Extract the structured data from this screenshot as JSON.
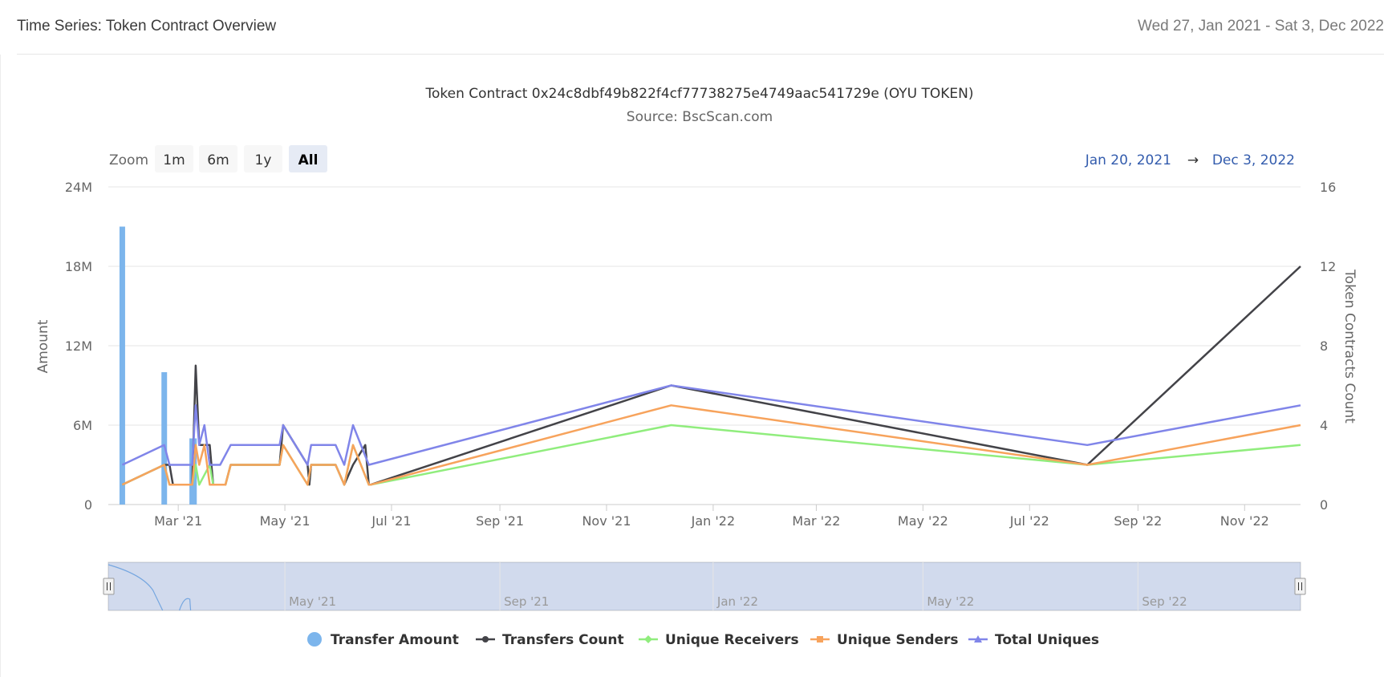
{
  "header": {
    "title": "Time Series: Token Contract Overview",
    "date_range": "Wed 27, Jan 2021 - Sat 3, Dec 2022"
  },
  "range_selector": {
    "zoom_label": "Zoom",
    "buttons": [
      {
        "label": "1m",
        "selected": false
      },
      {
        "label": "6m",
        "selected": false
      },
      {
        "label": "1y",
        "selected": false
      },
      {
        "label": "All",
        "selected": true
      }
    ],
    "from": "Jan 20, 2021",
    "arrow": "→",
    "to": "Dec 3, 2022"
  },
  "navigator": {
    "labels": [
      "May '21",
      "Sep '21",
      "Jan '22",
      "May '22",
      "Sep '22"
    ]
  },
  "chart_data": {
    "type": "line",
    "title": "Token Contract 0x24c8dbf49b822f4cf77738275e4749aac541729e (OYU TOKEN)",
    "subtitle": "Source: BscScan.com",
    "x_axis": {
      "type": "date",
      "range": [
        "2021-01-20",
        "2022-12-03"
      ],
      "tick_labels": [
        "Mar '21",
        "May '21",
        "Jul '21",
        "Sep '21",
        "Nov '21",
        "Jan '22",
        "Mar '22",
        "May '22",
        "Jul '22",
        "Sep '22",
        "Nov '22"
      ],
      "tick_dates": [
        "2021-03-01",
        "2021-05-01",
        "2021-07-01",
        "2021-09-01",
        "2021-11-01",
        "2022-01-01",
        "2022-03-01",
        "2022-05-01",
        "2022-07-01",
        "2022-09-01",
        "2022-11-01"
      ]
    },
    "y_axis_left": {
      "label": "Amount",
      "range": [
        0,
        24000000
      ],
      "ticks": [
        0,
        6000000,
        12000000,
        18000000,
        24000000
      ],
      "tick_labels": [
        "0",
        "6M",
        "12M",
        "18M",
        "24M"
      ]
    },
    "y_axis_right": {
      "label": "Token Contracts Count",
      "range": [
        0,
        16
      ],
      "ticks": [
        0,
        4,
        8,
        12,
        16
      ],
      "tick_labels": [
        "0",
        "4",
        "8",
        "12",
        "16"
      ]
    },
    "grid": true,
    "legend_position": "bottom-center",
    "colors": {
      "transfer_amount": "#7cb5ec",
      "transfers_count": "#434348",
      "unique_receivers": "#90ed7d",
      "unique_senders": "#f7a35c",
      "total_uniques": "#8085e9"
    },
    "bar_series": {
      "name": "Transfer Amount",
      "axis": "left",
      "points": [
        {
          "x": "2021-01-28",
          "y": 21000000
        },
        {
          "x": "2021-02-21",
          "y": 10000000
        },
        {
          "x": "2021-03-09",
          "y": 5000000
        },
        {
          "x": "2021-03-10",
          "y": 5000000
        }
      ]
    },
    "series": [
      {
        "name": "Transfers Count",
        "axis": "right",
        "marker": "circle",
        "points": [
          {
            "x": "2021-01-28",
            "y": 1
          },
          {
            "x": "2021-02-21",
            "y": 2
          },
          {
            "x": "2021-02-24",
            "y": 2
          },
          {
            "x": "2021-02-26",
            "y": 1
          },
          {
            "x": "2021-03-09",
            "y": 1
          },
          {
            "x": "2021-03-11",
            "y": 7
          },
          {
            "x": "2021-03-13",
            "y": 3
          },
          {
            "x": "2021-03-19",
            "y": 3
          },
          {
            "x": "2021-03-21",
            "y": 1
          },
          {
            "x": "2021-03-28",
            "y": 1
          },
          {
            "x": "2021-03-31",
            "y": 2
          },
          {
            "x": "2021-04-28",
            "y": 2
          },
          {
            "x": "2021-04-30",
            "y": 4
          },
          {
            "x": "2021-05-14",
            "y": 2
          },
          {
            "x": "2021-05-15",
            "y": 1
          },
          {
            "x": "2021-05-16",
            "y": 2
          },
          {
            "x": "2021-05-30",
            "y": 2
          },
          {
            "x": "2021-06-04",
            "y": 1
          },
          {
            "x": "2021-06-09",
            "y": 2
          },
          {
            "x": "2021-06-16",
            "y": 3
          },
          {
            "x": "2021-06-18",
            "y": 1
          },
          {
            "x": "2021-06-19",
            "y": 1
          },
          {
            "x": "2021-12-08",
            "y": 6
          },
          {
            "x": "2022-08-03",
            "y": 2
          },
          {
            "x": "2022-12-03",
            "y": 12
          }
        ]
      },
      {
        "name": "Unique Receivers",
        "axis": "right",
        "marker": "diamond",
        "points": [
          {
            "x": "2021-01-28",
            "y": 1
          },
          {
            "x": "2021-02-21",
            "y": 2
          },
          {
            "x": "2021-02-24",
            "y": 1
          },
          {
            "x": "2021-03-09",
            "y": 1
          },
          {
            "x": "2021-03-11",
            "y": 2
          },
          {
            "x": "2021-03-13",
            "y": 1
          },
          {
            "x": "2021-03-19",
            "y": 2
          },
          {
            "x": "2021-03-21",
            "y": 1
          },
          {
            "x": "2021-03-28",
            "y": 1
          },
          {
            "x": "2021-03-31",
            "y": 2
          },
          {
            "x": "2021-04-28",
            "y": 2
          },
          {
            "x": "2021-04-30",
            "y": 3
          },
          {
            "x": "2021-05-14",
            "y": 1
          },
          {
            "x": "2021-05-16",
            "y": 2
          },
          {
            "x": "2021-05-30",
            "y": 2
          },
          {
            "x": "2021-06-04",
            "y": 1
          },
          {
            "x": "2021-06-09",
            "y": 3
          },
          {
            "x": "2021-06-18",
            "y": 1
          },
          {
            "x": "2021-06-19",
            "y": 1
          },
          {
            "x": "2021-12-08",
            "y": 4
          },
          {
            "x": "2022-08-03",
            "y": 2
          },
          {
            "x": "2022-12-03",
            "y": 3
          }
        ]
      },
      {
        "name": "Unique Senders",
        "axis": "right",
        "marker": "square",
        "points": [
          {
            "x": "2021-01-28",
            "y": 1
          },
          {
            "x": "2021-02-21",
            "y": 2
          },
          {
            "x": "2021-02-24",
            "y": 1
          },
          {
            "x": "2021-03-09",
            "y": 1
          },
          {
            "x": "2021-03-11",
            "y": 3
          },
          {
            "x": "2021-03-13",
            "y": 2
          },
          {
            "x": "2021-03-16",
            "y": 3
          },
          {
            "x": "2021-03-19",
            "y": 1
          },
          {
            "x": "2021-03-28",
            "y": 1
          },
          {
            "x": "2021-03-31",
            "y": 2
          },
          {
            "x": "2021-04-28",
            "y": 2
          },
          {
            "x": "2021-04-30",
            "y": 3
          },
          {
            "x": "2021-05-14",
            "y": 1
          },
          {
            "x": "2021-05-16",
            "y": 2
          },
          {
            "x": "2021-05-30",
            "y": 2
          },
          {
            "x": "2021-06-04",
            "y": 1
          },
          {
            "x": "2021-06-09",
            "y": 3
          },
          {
            "x": "2021-06-18",
            "y": 1
          },
          {
            "x": "2021-06-19",
            "y": 1
          },
          {
            "x": "2021-12-08",
            "y": 5
          },
          {
            "x": "2022-08-03",
            "y": 2
          },
          {
            "x": "2022-12-03",
            "y": 4
          }
        ]
      },
      {
        "name": "Total Uniques",
        "axis": "right",
        "marker": "triangle",
        "points": [
          {
            "x": "2021-01-28",
            "y": 2
          },
          {
            "x": "2021-02-21",
            "y": 3
          },
          {
            "x": "2021-02-24",
            "y": 2
          },
          {
            "x": "2021-03-09",
            "y": 2
          },
          {
            "x": "2021-03-11",
            "y": 5
          },
          {
            "x": "2021-03-13",
            "y": 3
          },
          {
            "x": "2021-03-16",
            "y": 4
          },
          {
            "x": "2021-03-19",
            "y": 2
          },
          {
            "x": "2021-03-25",
            "y": 2
          },
          {
            "x": "2021-03-31",
            "y": 3
          },
          {
            "x": "2021-04-28",
            "y": 3
          },
          {
            "x": "2021-04-30",
            "y": 4
          },
          {
            "x": "2021-05-14",
            "y": 2
          },
          {
            "x": "2021-05-16",
            "y": 3
          },
          {
            "x": "2021-05-30",
            "y": 3
          },
          {
            "x": "2021-06-04",
            "y": 2
          },
          {
            "x": "2021-06-09",
            "y": 4
          },
          {
            "x": "2021-06-18",
            "y": 2
          },
          {
            "x": "2022-08-03",
            "y": 3
          },
          {
            "x": "2021-12-08",
            "y": 6
          },
          {
            "x": "2022-12-03",
            "y": 5
          }
        ]
      }
    ],
    "legend": [
      {
        "name": "Transfer Amount",
        "symbol": "circle"
      },
      {
        "name": "Transfers Count",
        "symbol": "circle"
      },
      {
        "name": "Unique Receivers",
        "symbol": "diamond"
      },
      {
        "name": "Unique Senders",
        "symbol": "square"
      },
      {
        "name": "Total Uniques",
        "symbol": "triangle"
      }
    ]
  }
}
